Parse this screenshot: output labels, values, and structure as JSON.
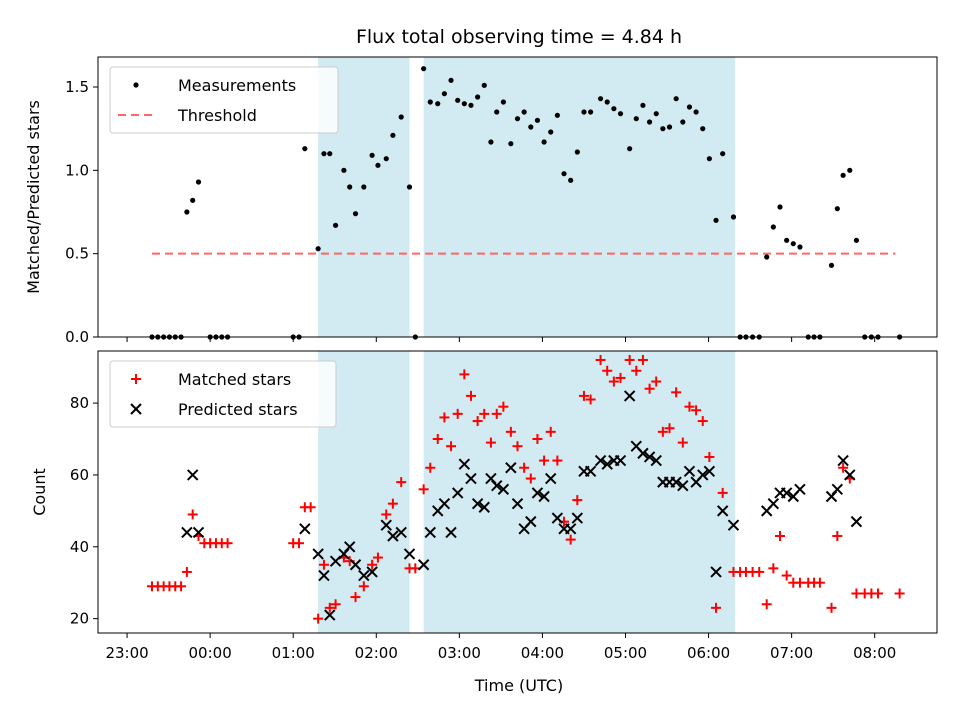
{
  "chart_data": {
    "type": "scatter",
    "title": "Flux total observing time = 4.84 h",
    "xlabel": "Time (UTC)",
    "x_ticks": [
      "23:00",
      "00:00",
      "01:00",
      "02:00",
      "03:00",
      "04:00",
      "05:00",
      "06:00",
      "07:00",
      "08:00"
    ],
    "x_range_hours": [
      -1.35,
      8.75
    ],
    "shaded_intervals_hours": [
      [
        1.3,
        2.4
      ],
      [
        2.57,
        6.32
      ]
    ],
    "shade_color": "#add8e6",
    "top_panel": {
      "ylabel": "Matched/Predicted stars",
      "ylim": [
        0,
        1.68
      ],
      "y_ticks": [
        "0.0",
        "0.5",
        "1.0",
        "1.5"
      ],
      "legend": [
        "Measurements",
        "Threshold"
      ],
      "legend_position": "upper-left",
      "threshold": {
        "name": "Threshold",
        "value": 0.5,
        "x_range_hours": [
          -0.7,
          8.25
        ],
        "color": "#ff6666"
      },
      "series": [
        {
          "name": "Measurements",
          "color": "#000000",
          "points": [
            [
              -0.7,
              0
            ],
            [
              -0.63,
              0
            ],
            [
              -0.56,
              0
            ],
            [
              -0.49,
              0
            ],
            [
              -0.42,
              0
            ],
            [
              -0.35,
              0
            ],
            [
              -0.28,
              0.75
            ],
            [
              -0.21,
              0.82
            ],
            [
              -0.14,
              0.93
            ],
            [
              0,
              0
            ],
            [
              0.07,
              0
            ],
            [
              0.14,
              0
            ],
            [
              0.21,
              0
            ],
            [
              1.0,
              0
            ],
            [
              1.07,
              0
            ],
            [
              1.14,
              1.13
            ],
            [
              1.3,
              0.53
            ],
            [
              1.37,
              1.1
            ],
            [
              1.44,
              1.1
            ],
            [
              1.51,
              0.67
            ],
            [
              1.61,
              1.0
            ],
            [
              1.68,
              0.9
            ],
            [
              1.75,
              0.74
            ],
            [
              1.85,
              0.9
            ],
            [
              1.95,
              1.09
            ],
            [
              2.02,
              1.03
            ],
            [
              2.12,
              1.07
            ],
            [
              2.2,
              1.21
            ],
            [
              2.3,
              1.32
            ],
            [
              2.4,
              0.9
            ],
            [
              2.47,
              0
            ],
            [
              2.57,
              1.61
            ],
            [
              2.65,
              1.41
            ],
            [
              2.74,
              1.4
            ],
            [
              2.82,
              1.46
            ],
            [
              2.9,
              1.54
            ],
            [
              2.98,
              1.42
            ],
            [
              3.06,
              1.4
            ],
            [
              3.14,
              1.39
            ],
            [
              3.22,
              1.44
            ],
            [
              3.3,
              1.51
            ],
            [
              3.38,
              1.17
            ],
            [
              3.45,
              1.35
            ],
            [
              3.53,
              1.41
            ],
            [
              3.62,
              1.16
            ],
            [
              3.7,
              1.31
            ],
            [
              3.78,
              1.35
            ],
            [
              3.86,
              1.26
            ],
            [
              3.94,
              1.3
            ],
            [
              4.02,
              1.17
            ],
            [
              4.1,
              1.23
            ],
            [
              4.18,
              1.33
            ],
            [
              4.26,
              0.98
            ],
            [
              4.34,
              0.94
            ],
            [
              4.42,
              1.11
            ],
            [
              4.5,
              1.35
            ],
            [
              4.58,
              1.35
            ],
            [
              4.7,
              1.43
            ],
            [
              4.78,
              1.41
            ],
            [
              4.86,
              1.37
            ],
            [
              4.94,
              1.34
            ],
            [
              5.05,
              1.13
            ],
            [
              5.13,
              1.31
            ],
            [
              5.21,
              1.39
            ],
            [
              5.29,
              1.29
            ],
            [
              5.37,
              1.34
            ],
            [
              5.45,
              1.25
            ],
            [
              5.53,
              1.26
            ],
            [
              5.61,
              1.43
            ],
            [
              5.69,
              1.29
            ],
            [
              5.77,
              1.38
            ],
            [
              5.85,
              1.35
            ],
            [
              5.93,
              1.25
            ],
            [
              6.01,
              1.07
            ],
            [
              6.09,
              0.7
            ],
            [
              6.17,
              1.1
            ],
            [
              6.3,
              0.72
            ],
            [
              6.38,
              0
            ],
            [
              6.45,
              0
            ],
            [
              6.53,
              0
            ],
            [
              6.61,
              0
            ],
            [
              6.7,
              0.48
            ],
            [
              6.78,
              0.66
            ],
            [
              6.86,
              0.78
            ],
            [
              6.94,
              0.58
            ],
            [
              7.02,
              0.56
            ],
            [
              7.1,
              0.54
            ],
            [
              7.2,
              0
            ],
            [
              7.27,
              0
            ],
            [
              7.34,
              0
            ],
            [
              7.48,
              0.43
            ],
            [
              7.55,
              0.77
            ],
            [
              7.62,
              0.97
            ],
            [
              7.7,
              1.0
            ],
            [
              7.78,
              0.58
            ],
            [
              7.88,
              0
            ],
            [
              7.96,
              0
            ],
            [
              8.04,
              0
            ],
            [
              8.3,
              0
            ]
          ]
        }
      ]
    },
    "bottom_panel": {
      "ylabel": "Count",
      "ylim": [
        16,
        94.5
      ],
      "y_ticks": [
        "20",
        "40",
        "60",
        "80"
      ],
      "legend": [
        "Matched stars",
        "Predicted stars"
      ],
      "legend_position": "upper-left",
      "series": [
        {
          "name": "Matched stars",
          "marker": "+",
          "color": "#ff0000",
          "points": [
            [
              -0.7,
              29
            ],
            [
              -0.63,
              29
            ],
            [
              -0.56,
              29
            ],
            [
              -0.49,
              29
            ],
            [
              -0.42,
              29
            ],
            [
              -0.35,
              29
            ],
            [
              -0.28,
              33
            ],
            [
              -0.21,
              49
            ],
            [
              -0.14,
              43
            ],
            [
              -0.07,
              41
            ],
            [
              0,
              41
            ],
            [
              0.07,
              41
            ],
            [
              0.14,
              41
            ],
            [
              0.21,
              41
            ],
            [
              1.0,
              41
            ],
            [
              1.07,
              41
            ],
            [
              1.14,
              51
            ],
            [
              1.21,
              51
            ],
            [
              1.3,
              20
            ],
            [
              1.37,
              35
            ],
            [
              1.44,
              23
            ],
            [
              1.51,
              24
            ],
            [
              1.61,
              37
            ],
            [
              1.68,
              36
            ],
            [
              1.75,
              26
            ],
            [
              1.85,
              29
            ],
            [
              1.95,
              35
            ],
            [
              2.02,
              37
            ],
            [
              2.12,
              49
            ],
            [
              2.2,
              52
            ],
            [
              2.3,
              58
            ],
            [
              2.4,
              34
            ],
            [
              2.47,
              34
            ],
            [
              2.57,
              56
            ],
            [
              2.65,
              62
            ],
            [
              2.74,
              70
            ],
            [
              2.82,
              76
            ],
            [
              2.9,
              68
            ],
            [
              2.98,
              77
            ],
            [
              3.06,
              88
            ],
            [
              3.14,
              82
            ],
            [
              3.22,
              75
            ],
            [
              3.3,
              77
            ],
            [
              3.38,
              69
            ],
            [
              3.45,
              77
            ],
            [
              3.53,
              79
            ],
            [
              3.62,
              72
            ],
            [
              3.7,
              68
            ],
            [
              3.78,
              62
            ],
            [
              3.86,
              59
            ],
            [
              3.94,
              70
            ],
            [
              4.02,
              64
            ],
            [
              4.1,
              72
            ],
            [
              4.18,
              64
            ],
            [
              4.26,
              47
            ],
            [
              4.34,
              42
            ],
            [
              4.42,
              53
            ],
            [
              4.5,
              82
            ],
            [
              4.58,
              81
            ],
            [
              4.7,
              92
            ],
            [
              4.78,
              89
            ],
            [
              4.86,
              86
            ],
            [
              4.94,
              87
            ],
            [
              5.05,
              92
            ],
            [
              5.13,
              89
            ],
            [
              5.21,
              92
            ],
            [
              5.29,
              84
            ],
            [
              5.37,
              86
            ],
            [
              5.45,
              72
            ],
            [
              5.53,
              73
            ],
            [
              5.61,
              83
            ],
            [
              5.69,
              69
            ],
            [
              5.77,
              79
            ],
            [
              5.85,
              78
            ],
            [
              5.93,
              75
            ],
            [
              6.01,
              65
            ],
            [
              6.09,
              23
            ],
            [
              6.17,
              55
            ],
            [
              6.3,
              33
            ],
            [
              6.38,
              33
            ],
            [
              6.45,
              33
            ],
            [
              6.53,
              33
            ],
            [
              6.61,
              33
            ],
            [
              6.7,
              24
            ],
            [
              6.78,
              34
            ],
            [
              6.86,
              43
            ],
            [
              6.94,
              32
            ],
            [
              7.02,
              30
            ],
            [
              7.1,
              30
            ],
            [
              7.2,
              30
            ],
            [
              7.27,
              30
            ],
            [
              7.34,
              30
            ],
            [
              7.48,
              23
            ],
            [
              7.55,
              43
            ],
            [
              7.62,
              62
            ],
            [
              7.7,
              59
            ],
            [
              7.78,
              27
            ],
            [
              7.88,
              27
            ],
            [
              7.96,
              27
            ],
            [
              8.04,
              27
            ],
            [
              8.3,
              27
            ]
          ]
        },
        {
          "name": "Predicted stars",
          "marker": "x",
          "color": "#000000",
          "points": [
            [
              -0.28,
              44
            ],
            [
              -0.21,
              60
            ],
            [
              -0.14,
              44
            ],
            [
              1.14,
              45
            ],
            [
              1.3,
              38
            ],
            [
              1.37,
              32
            ],
            [
              1.44,
              21
            ],
            [
              1.51,
              36
            ],
            [
              1.61,
              38
            ],
            [
              1.68,
              40
            ],
            [
              1.75,
              35
            ],
            [
              1.85,
              32
            ],
            [
              1.95,
              33
            ],
            [
              2.12,
              46
            ],
            [
              2.2,
              43
            ],
            [
              2.3,
              44
            ],
            [
              2.4,
              38
            ],
            [
              2.57,
              35
            ],
            [
              2.65,
              44
            ],
            [
              2.74,
              50
            ],
            [
              2.82,
              52
            ],
            [
              2.9,
              44
            ],
            [
              2.98,
              55
            ],
            [
              3.06,
              63
            ],
            [
              3.14,
              59
            ],
            [
              3.22,
              52
            ],
            [
              3.3,
              51
            ],
            [
              3.38,
              59
            ],
            [
              3.45,
              57
            ],
            [
              3.53,
              56
            ],
            [
              3.62,
              62
            ],
            [
              3.7,
              52
            ],
            [
              3.78,
              45
            ],
            [
              3.86,
              47
            ],
            [
              3.94,
              55
            ],
            [
              4.02,
              54
            ],
            [
              4.1,
              59
            ],
            [
              4.18,
              48
            ],
            [
              4.26,
              45
            ],
            [
              4.34,
              45
            ],
            [
              4.42,
              48
            ],
            [
              4.5,
              61
            ],
            [
              4.58,
              61
            ],
            [
              4.7,
              64
            ],
            [
              4.78,
              63
            ],
            [
              4.86,
              64
            ],
            [
              4.94,
              64
            ],
            [
              5.05,
              82
            ],
            [
              5.13,
              68
            ],
            [
              5.21,
              66
            ],
            [
              5.29,
              65
            ],
            [
              5.37,
              64
            ],
            [
              5.45,
              58
            ],
            [
              5.53,
              58
            ],
            [
              5.61,
              58
            ],
            [
              5.69,
              57
            ],
            [
              5.77,
              61
            ],
            [
              5.85,
              58
            ],
            [
              5.93,
              60
            ],
            [
              6.01,
              61
            ],
            [
              6.09,
              33
            ],
            [
              6.17,
              50
            ],
            [
              6.3,
              46
            ],
            [
              6.7,
              50
            ],
            [
              6.78,
              52
            ],
            [
              6.86,
              55
            ],
            [
              6.94,
              55
            ],
            [
              7.02,
              54
            ],
            [
              7.1,
              56
            ],
            [
              7.48,
              54
            ],
            [
              7.55,
              56
            ],
            [
              7.62,
              64
            ],
            [
              7.7,
              60
            ],
            [
              7.78,
              47
            ]
          ]
        }
      ]
    }
  }
}
